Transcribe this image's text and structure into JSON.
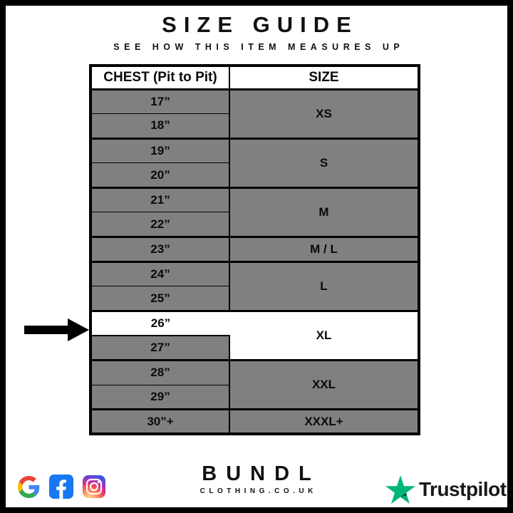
{
  "header": {
    "title": "SIZE GUIDE",
    "subtitle": "SEE HOW THIS ITEM MEASURES UP"
  },
  "table": {
    "columns": {
      "chest": "CHEST (Pit to Pit)",
      "size": "SIZE"
    },
    "groups": [
      {
        "size": "XS",
        "chest": [
          "17”",
          "18”"
        ]
      },
      {
        "size": "S",
        "chest": [
          "19”",
          "20”"
        ]
      },
      {
        "size": "M",
        "chest": [
          "21”",
          "22”"
        ]
      },
      {
        "size": "M / L",
        "chest": [
          "23”"
        ]
      },
      {
        "size": "L",
        "chest": [
          "24”",
          "25”"
        ]
      },
      {
        "size": "XL",
        "chest": [
          "26”",
          "27”"
        ],
        "highlight": "26”"
      },
      {
        "size": "XXL",
        "chest": [
          "28”",
          "29”"
        ]
      },
      {
        "size": "XXXL+",
        "chest": [
          "30”+"
        ]
      }
    ],
    "colors": {
      "row_gray": "#808080",
      "highlight_white": "#ffffff",
      "border_black": "#000000"
    }
  },
  "arrow": {
    "points_to": "26”"
  },
  "chart_data": {
    "type": "table",
    "title": "SIZE GUIDE",
    "columns": [
      "CHEST (Pit to Pit)",
      "SIZE"
    ],
    "rows": [
      [
        "17”",
        "XS"
      ],
      [
        "18”",
        "XS"
      ],
      [
        "19”",
        "S"
      ],
      [
        "20”",
        "S"
      ],
      [
        "21”",
        "M"
      ],
      [
        "22”",
        "M"
      ],
      [
        "23”",
        "M / L"
      ],
      [
        "24”",
        "L"
      ],
      [
        "25”",
        "L"
      ],
      [
        "26”",
        "XL"
      ],
      [
        "27”",
        "XL"
      ],
      [
        "28”",
        "XXL"
      ],
      [
        "29”",
        "XXL"
      ],
      [
        "30”+",
        "XXXL+"
      ]
    ],
    "highlighted_row": [
      "26”",
      "XL"
    ]
  },
  "footer": {
    "brand": {
      "name": "BUNDL",
      "domain": "CLOTHING.CO.UK"
    },
    "social_icons": [
      "google",
      "facebook",
      "instagram"
    ],
    "trustpilot": {
      "label": "Trustpilot",
      "star_color": "#00B67A",
      "star_notch_color": "#005128"
    },
    "facebook_blue": "#1877F2"
  }
}
